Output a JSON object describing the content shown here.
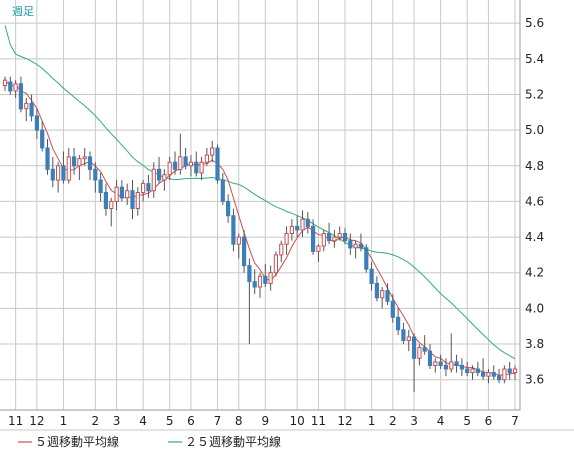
{
  "chart_data": {
    "type": "candlestick",
    "period_label": "週足",
    "y_ticks": [
      "5.6",
      "5.4",
      "5.2",
      "5.0",
      "4.8",
      "4.6",
      "4.4",
      "4.2",
      "4.0",
      "3.8",
      "3.6"
    ],
    "y_tick_values": [
      5.6,
      5.4,
      5.2,
      5.0,
      4.8,
      4.6,
      4.4,
      4.2,
      4.0,
      3.8,
      3.6
    ],
    "ylim": [
      3.43,
      5.73
    ],
    "x_ticks": [
      {
        "label": "11",
        "index": 2
      },
      {
        "label": "12",
        "index": 6
      },
      {
        "label": "1",
        "index": 11
      },
      {
        "label": "2",
        "index": 17
      },
      {
        "label": "3",
        "index": 21
      },
      {
        "label": "4",
        "index": 26
      },
      {
        "label": "5",
        "index": 31
      },
      {
        "label": "6",
        "index": 35
      },
      {
        "label": "7",
        "index": 40
      },
      {
        "label": "8",
        "index": 44
      },
      {
        "label": "9",
        "index": 49
      },
      {
        "label": "10",
        "index": 55
      },
      {
        "label": "11",
        "index": 59
      },
      {
        "label": "12",
        "index": 64
      },
      {
        "label": "1",
        "index": 69
      },
      {
        "label": "2",
        "index": 73
      },
      {
        "label": "3",
        "index": 77
      },
      {
        "label": "4",
        "index": 82
      },
      {
        "label": "5",
        "index": 87
      },
      {
        "label": "6",
        "index": 91
      },
      {
        "label": "7",
        "index": 96
      }
    ],
    "candles": [
      [
        5.25,
        5.3,
        5.22,
        5.28
      ],
      [
        5.27,
        5.3,
        5.2,
        5.22
      ],
      [
        5.22,
        5.28,
        5.18,
        5.26
      ],
      [
        5.26,
        5.3,
        5.1,
        5.12
      ],
      [
        5.12,
        5.18,
        5.05,
        5.15
      ],
      [
        5.15,
        5.2,
        5.05,
        5.08
      ],
      [
        5.08,
        5.12,
        4.95,
        5.0
      ],
      [
        5.0,
        5.05,
        4.88,
        4.9
      ],
      [
        4.9,
        4.95,
        4.75,
        4.78
      ],
      [
        4.78,
        4.85,
        4.68,
        4.72
      ],
      [
        4.72,
        4.82,
        4.65,
        4.8
      ],
      [
        4.8,
        4.88,
        4.7,
        4.72
      ],
      [
        4.72,
        4.9,
        4.7,
        4.85
      ],
      [
        4.85,
        4.9,
        4.75,
        4.8
      ],
      [
        4.8,
        4.86,
        4.72,
        4.84
      ],
      [
        4.84,
        4.9,
        4.8,
        4.85
      ],
      [
        4.85,
        4.88,
        4.72,
        4.78
      ],
      [
        4.78,
        4.82,
        4.65,
        4.72
      ],
      [
        4.72,
        4.76,
        4.6,
        4.65
      ],
      [
        4.65,
        4.7,
        4.52,
        4.56
      ],
      [
        4.56,
        4.62,
        4.46,
        4.6
      ],
      [
        4.6,
        4.72,
        4.55,
        4.68
      ],
      [
        4.68,
        4.72,
        4.6,
        4.62
      ],
      [
        4.62,
        4.7,
        4.58,
        4.66
      ],
      [
        4.66,
        4.72,
        4.5,
        4.56
      ],
      [
        4.56,
        4.68,
        4.52,
        4.65
      ],
      [
        4.65,
        4.72,
        4.6,
        4.7
      ],
      [
        4.7,
        4.75,
        4.62,
        4.66
      ],
      [
        4.66,
        4.82,
        4.62,
        4.78
      ],
      [
        4.78,
        4.85,
        4.7,
        4.72
      ],
      [
        4.72,
        4.78,
        4.66,
        4.75
      ],
      [
        4.75,
        4.85,
        4.72,
        4.82
      ],
      [
        4.82,
        4.88,
        4.75,
        4.78
      ],
      [
        4.78,
        4.98,
        4.75,
        4.85
      ],
      [
        4.85,
        4.9,
        4.78,
        4.8
      ],
      [
        4.8,
        4.86,
        4.74,
        4.82
      ],
      [
        4.82,
        4.88,
        4.74,
        4.76
      ],
      [
        4.76,
        4.85,
        4.72,
        4.82
      ],
      [
        4.82,
        4.9,
        4.8,
        4.86
      ],
      [
        4.86,
        4.94,
        4.82,
        4.9
      ],
      [
        4.9,
        4.92,
        4.7,
        4.72
      ],
      [
        4.72,
        4.76,
        4.58,
        4.6
      ],
      [
        4.6,
        4.64,
        4.48,
        4.52
      ],
      [
        4.52,
        4.56,
        4.32,
        4.36
      ],
      [
        4.36,
        4.42,
        4.28,
        4.4
      ],
      [
        4.4,
        4.44,
        4.2,
        4.24
      ],
      [
        4.24,
        4.28,
        3.8,
        4.15
      ],
      [
        4.15,
        4.22,
        4.08,
        4.12
      ],
      [
        4.12,
        4.2,
        4.06,
        4.18
      ],
      [
        4.18,
        4.25,
        4.12,
        4.14
      ],
      [
        4.14,
        4.24,
        4.1,
        4.2
      ],
      [
        4.2,
        4.32,
        4.18,
        4.3
      ],
      [
        4.3,
        4.38,
        4.26,
        4.36
      ],
      [
        4.36,
        4.46,
        4.3,
        4.42
      ],
      [
        4.42,
        4.5,
        4.38,
        4.46
      ],
      [
        4.46,
        4.52,
        4.4,
        4.44
      ],
      [
        4.44,
        4.55,
        4.4,
        4.5
      ],
      [
        4.5,
        4.54,
        4.42,
        4.46
      ],
      [
        4.46,
        4.5,
        4.3,
        4.32
      ],
      [
        4.32,
        4.36,
        4.26,
        4.35
      ],
      [
        4.35,
        4.44,
        4.32,
        4.42
      ],
      [
        4.42,
        4.48,
        4.36,
        4.38
      ],
      [
        4.38,
        4.44,
        4.34,
        4.4
      ],
      [
        4.4,
        4.46,
        4.38,
        4.42
      ],
      [
        4.42,
        4.45,
        4.36,
        4.38
      ],
      [
        4.38,
        4.42,
        4.3,
        4.34
      ],
      [
        4.34,
        4.38,
        4.28,
        4.36
      ],
      [
        4.36,
        4.42,
        4.32,
        4.34
      ],
      [
        4.34,
        4.36,
        4.2,
        4.22
      ],
      [
        4.22,
        4.26,
        4.1,
        4.14
      ],
      [
        4.14,
        4.18,
        4.04,
        4.06
      ],
      [
        4.06,
        4.12,
        4.0,
        4.1
      ],
      [
        4.1,
        4.14,
        4.02,
        4.04
      ],
      [
        4.04,
        4.08,
        3.92,
        3.95
      ],
      [
        3.95,
        4.0,
        3.85,
        3.88
      ],
      [
        3.88,
        3.92,
        3.8,
        3.82
      ],
      [
        3.82,
        3.88,
        3.76,
        3.84
      ],
      [
        3.84,
        3.86,
        3.53,
        3.72
      ],
      [
        3.72,
        3.8,
        3.68,
        3.78
      ],
      [
        3.78,
        3.85,
        3.74,
        3.76
      ],
      [
        3.76,
        3.8,
        3.66,
        3.68
      ],
      [
        3.68,
        3.72,
        3.64,
        3.7
      ],
      [
        3.7,
        3.74,
        3.66,
        3.68
      ],
      [
        3.68,
        3.72,
        3.62,
        3.66
      ],
      [
        3.66,
        3.86,
        3.64,
        3.7
      ],
      [
        3.7,
        3.74,
        3.64,
        3.68
      ],
      [
        3.68,
        3.72,
        3.62,
        3.66
      ],
      [
        3.66,
        3.7,
        3.62,
        3.64
      ],
      [
        3.64,
        3.68,
        3.6,
        3.66
      ],
      [
        3.66,
        3.7,
        3.62,
        3.64
      ],
      [
        3.64,
        3.72,
        3.6,
        3.62
      ],
      [
        3.62,
        3.66,
        3.58,
        3.64
      ],
      [
        3.64,
        3.68,
        3.6,
        3.62
      ],
      [
        3.62,
        3.66,
        3.58,
        3.6
      ],
      [
        3.6,
        3.68,
        3.58,
        3.66
      ],
      [
        3.66,
        3.7,
        3.6,
        3.64
      ],
      [
        3.64,
        3.68,
        3.6,
        3.66
      ]
    ],
    "ma25_start": [
      5.6,
      5.5,
      5.45
    ],
    "ma_periods": [
      5,
      25
    ],
    "legend": [
      {
        "name": "５週移動平均線",
        "color": "#c85050"
      },
      {
        "name": "２５週移動平均線",
        "color": "#3aa97a"
      }
    ],
    "colors": {
      "up_fill": "#ffffff",
      "up_stroke": "#c85050",
      "down_fill": "#3d7eb8",
      "down_stroke": "#3d7eb8",
      "wick": "#555555",
      "grid": "#c8c8c8",
      "frame": "#9a9a9a",
      "ma5": "#c85050",
      "ma25": "#3aa97a"
    },
    "grid": true,
    "legend_position": "bottom-left"
  }
}
